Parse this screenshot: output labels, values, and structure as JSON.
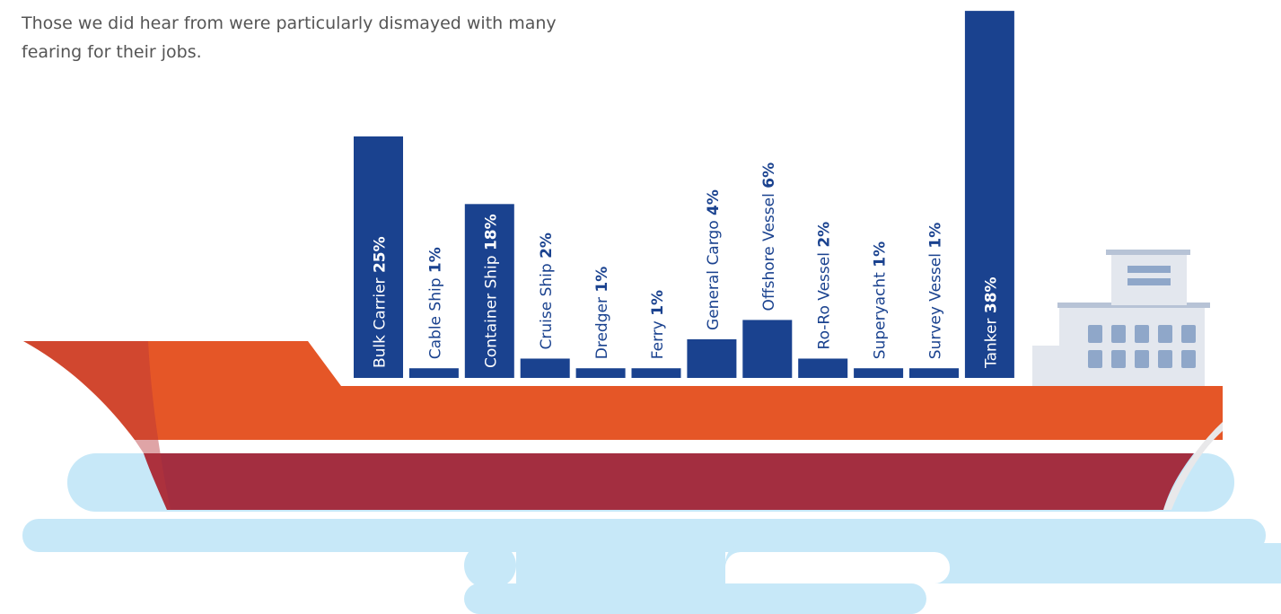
{
  "intro": [
    "Those we did hear from were particularly dismayed with many",
    "fearing for their jobs."
  ],
  "chart_data": {
    "type": "bar",
    "categories": [
      "Bulk Carrier",
      "Cable Ship",
      "Container Ship",
      "Cruise Ship",
      "Dredger",
      "Ferry",
      "General Cargo",
      "Offshore Vessel",
      "Ro-Ro Vessel",
      "Superyacht",
      "Survey Vessel",
      "Tanker"
    ],
    "values": [
      25,
      1,
      18,
      2,
      1,
      1,
      4,
      6,
      2,
      1,
      1,
      38
    ],
    "value_labels": [
      "25%",
      "1%",
      "18%",
      "2%",
      "1%",
      "1%",
      "4%",
      "6%",
      "2%",
      "1%",
      "1%",
      "38%"
    ],
    "color": "#1a428f"
  }
}
